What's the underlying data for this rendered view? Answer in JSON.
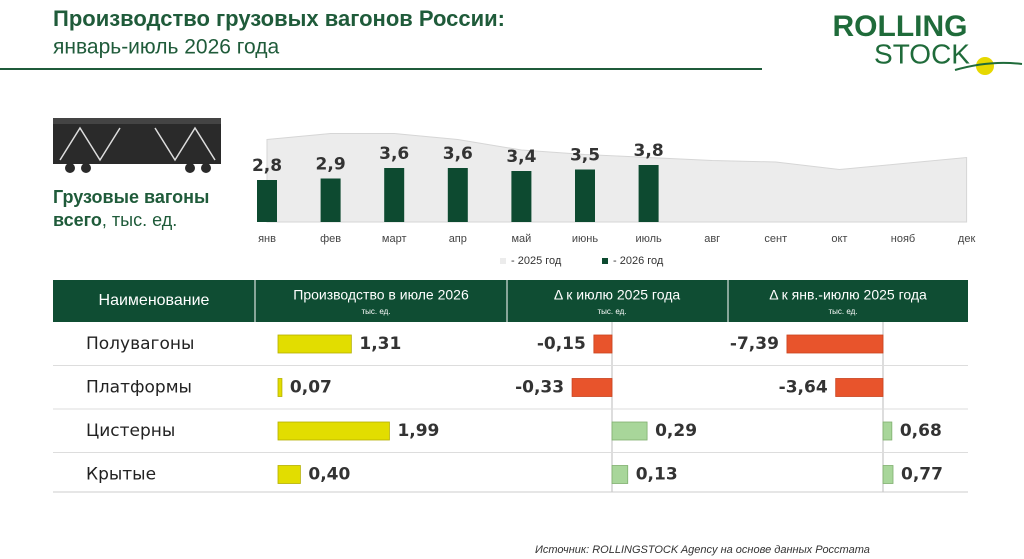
{
  "header": {
    "title": "Производство грузовых вагонов России:",
    "subtitle": "январь-июль 2026 года"
  },
  "logo": {
    "line1": "ROLLING",
    "line2": "STOCK"
  },
  "chart_data": {
    "type": "bar",
    "label_parts": [
      "Грузовые вагоны",
      "всего",
      ", тыс. ед."
    ],
    "categories": [
      "янв",
      "фев",
      "март",
      "апр",
      "май",
      "июнь",
      "июль",
      "авг",
      "сент",
      "окт",
      "нояб",
      "дек"
    ],
    "ylim": [
      0,
      6
    ],
    "series": [
      {
        "name": "- 2025 год",
        "type": "area",
        "color": "#ececec",
        "values": [
          5.5,
          5.9,
          5.9,
          5.5,
          4.8,
          4.5,
          4.3,
          4.1,
          4.0,
          3.5,
          3.9,
          4.3
        ]
      },
      {
        "name": "- 2026 год",
        "type": "bar",
        "color": "#0d4a30",
        "values": [
          2.8,
          2.9,
          3.6,
          3.6,
          3.4,
          3.5,
          3.8,
          null,
          null,
          null,
          null,
          null
        ],
        "value_labels": [
          "2,8",
          "2,9",
          "3,6",
          "3,6",
          "3,4",
          "3,5",
          "3,8",
          null,
          null,
          null,
          null,
          null
        ]
      }
    ]
  },
  "table": {
    "columns": [
      "Наименование",
      {
        "title": "Производство в июле 2026",
        "unit": "тыс. ед."
      },
      {
        "title": "Δ  к июлю 2025 года",
        "unit": "тыс. ед."
      },
      {
        "title": "Δ к янв.-июлю 2025 года",
        "unit": "тыс. ед."
      }
    ],
    "rows": [
      {
        "name": "Полувагоны",
        "values": [
          1.31,
          -0.15,
          -7.39
        ],
        "value_labels": [
          "1,31",
          "-0,15",
          "-7,39"
        ]
      },
      {
        "name": "Платформы",
        "values": [
          0.07,
          -0.33,
          -3.64
        ],
        "value_labels": [
          "0,07",
          "-0,33",
          "-3,64"
        ]
      },
      {
        "name": "Цистерны",
        "values": [
          1.99,
          0.29,
          0.68
        ],
        "value_labels": [
          "1,99",
          "0,29",
          "0,68"
        ]
      },
      {
        "name": "Крытые",
        "values": [
          0.4,
          0.13,
          0.77
        ],
        "value_labels": [
          "0,40",
          "0,13",
          "0,77"
        ]
      }
    ]
  },
  "source": "Источник: ROLLINGSTOCK Agency на основе данных Росстата"
}
